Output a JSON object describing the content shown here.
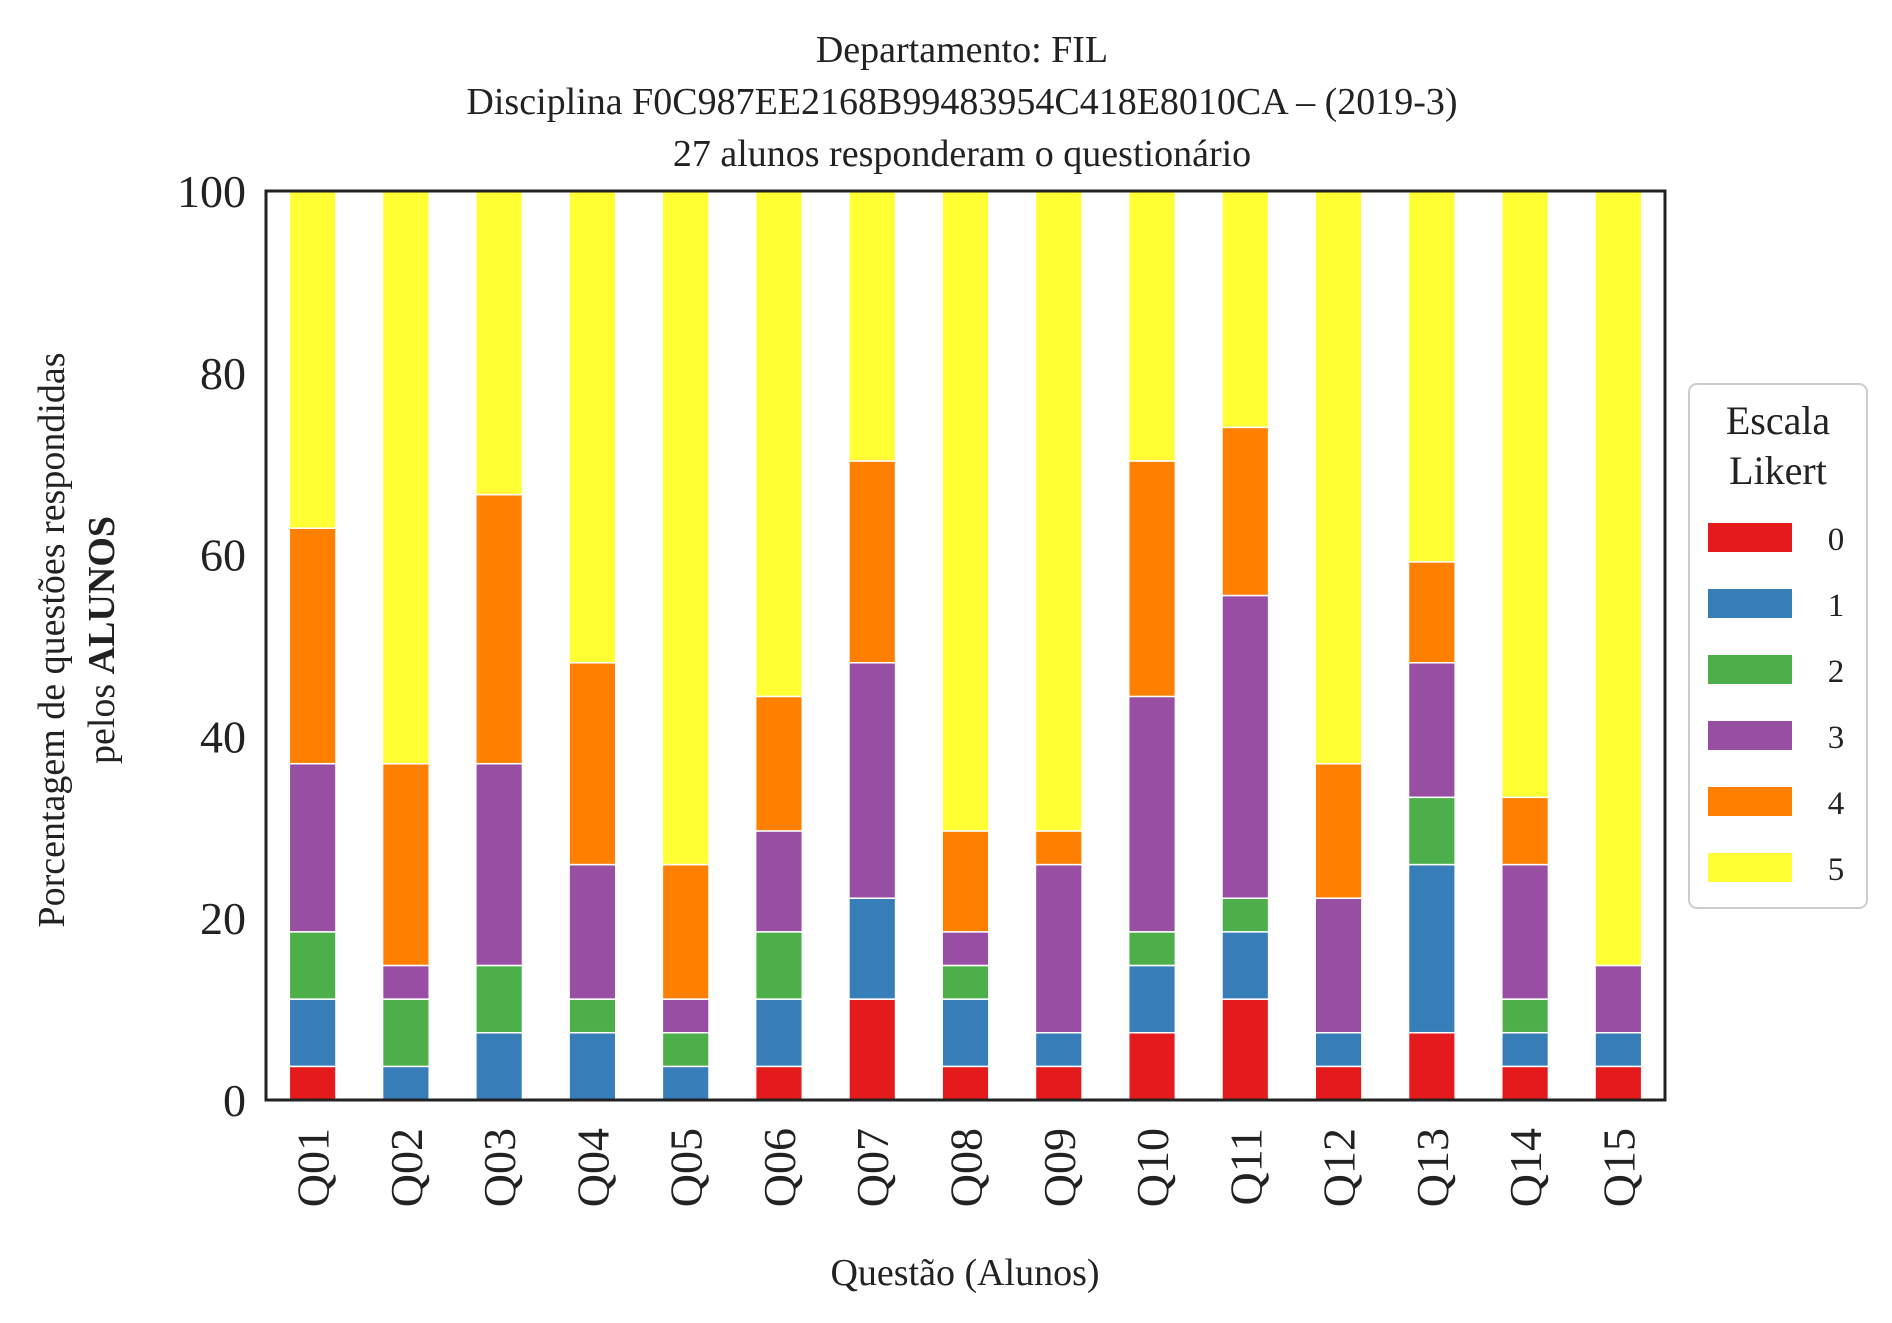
{
  "chart_data": {
    "type": "bar",
    "stacked": true,
    "title_lines": [
      "Departamento: FIL",
      "Disciplina F0C987EE2168B99483954C418E8010CA – (2019-3)",
      "27 alunos responderam o questionário"
    ],
    "xlabel": "Questão (Alunos)",
    "ylabel_line1": "Porcentagem de questões respondidas",
    "ylabel_line2_prefix": "pelos ",
    "ylabel_line2_bold": "ALUNOS",
    "ylim": [
      0,
      100
    ],
    "yticks": [
      "0",
      "20",
      "40",
      "60",
      "80",
      "100"
    ],
    "grid": false,
    "legend": {
      "title_lines": [
        "Escala",
        "Likert"
      ],
      "placement": "center-right, outside plot"
    },
    "categories": [
      "Q01",
      "Q02",
      "Q03",
      "Q04",
      "Q05",
      "Q06",
      "Q07",
      "Q08",
      "Q09",
      "Q10",
      "Q11",
      "Q12",
      "Q13",
      "Q14",
      "Q15"
    ],
    "series": [
      {
        "name": "0",
        "color": "#e41a1c",
        "values": [
          3.7,
          0,
          0,
          0,
          0,
          3.7,
          11.1,
          3.7,
          3.7,
          7.4,
          11.1,
          3.7,
          7.4,
          3.7,
          3.7
        ]
      },
      {
        "name": "1",
        "color": "#377eb8",
        "values": [
          7.4,
          3.7,
          7.4,
          7.4,
          3.7,
          7.4,
          11.1,
          7.4,
          3.7,
          7.4,
          7.4,
          3.7,
          18.5,
          3.7,
          3.7
        ]
      },
      {
        "name": "2",
        "color": "#4daf4a",
        "values": [
          7.4,
          7.4,
          7.4,
          3.7,
          3.7,
          7.4,
          0,
          3.7,
          0,
          3.7,
          3.7,
          0,
          7.4,
          3.7,
          0
        ]
      },
      {
        "name": "3",
        "color": "#984ea3",
        "values": [
          18.5,
          3.7,
          22.2,
          14.8,
          3.7,
          11.1,
          25.9,
          3.7,
          18.5,
          25.9,
          33.3,
          14.8,
          14.8,
          14.8,
          7.4
        ]
      },
      {
        "name": "4",
        "color": "#ff7f00",
        "values": [
          25.9,
          22.2,
          29.6,
          22.2,
          14.8,
          14.8,
          22.2,
          11.1,
          3.7,
          25.9,
          18.5,
          14.8,
          11.1,
          7.4,
          0
        ]
      },
      {
        "name": "5",
        "color": "#ffff33",
        "values": [
          37.1,
          63.0,
          33.4,
          51.9,
          74.1,
          55.6,
          29.7,
          70.4,
          70.4,
          29.7,
          26.0,
          63.0,
          40.8,
          66.7,
          85.2
        ]
      }
    ]
  }
}
